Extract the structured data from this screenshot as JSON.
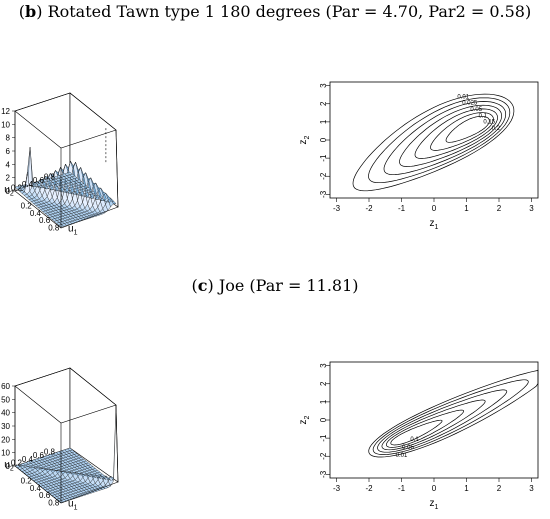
{
  "panels": [
    {
      "letter": "b",
      "title": "Rotated Tawn type 1 180 degrees (Par = 4.70, Par2 = 0.58)"
    },
    {
      "letter": "c",
      "title": "Joe (Par = 11.81)"
    }
  ],
  "axis_text": {
    "u1": "u",
    "u2": "u",
    "z1": "z",
    "z2": "z",
    "sub1": "1",
    "sub2": "2"
  },
  "chart_data": [
    {
      "type": "surface",
      "title": "",
      "zticks": [
        "0",
        "2",
        "4",
        "6",
        "8",
        "10",
        "12"
      ],
      "zlim": [
        0,
        12
      ],
      "u1_ticks": [
        "0.2",
        "0.4",
        "0.6",
        "0.8"
      ],
      "u2_ticks": [
        "0.2",
        "0.4",
        "0.6",
        "0.8"
      ],
      "surface_color": "#7fb8e8"
    },
    {
      "type": "contour",
      "title": "",
      "xticks": [
        "-3",
        "-2",
        "-1",
        "0",
        "1",
        "2",
        "3"
      ],
      "yticks": [
        "-3",
        "-2",
        "-1",
        "0",
        "1",
        "2",
        "3"
      ],
      "xlim": [
        -3.2,
        3.2
      ],
      "ylim": [
        -3.2,
        3.2
      ],
      "contour_labels": [
        "0.01",
        "0.025",
        "0.05",
        "0.1",
        "0.15",
        "0.2"
      ]
    },
    {
      "type": "surface",
      "title": "",
      "zticks": [
        "0",
        "10",
        "20",
        "30",
        "40",
        "50",
        "60"
      ],
      "zlim": [
        0,
        60
      ],
      "u1_ticks": [
        "0.2",
        "0.4",
        "0.6",
        "0.8"
      ],
      "u2_ticks": [
        "0.2",
        "0.4",
        "0.6",
        "0.8"
      ],
      "surface_color": "#7fb8e8"
    },
    {
      "type": "contour",
      "title": "",
      "xticks": [
        "-3",
        "-2",
        "-1",
        "0",
        "1",
        "2",
        "3"
      ],
      "yticks": [
        "-3",
        "-2",
        "-1",
        "0",
        "1",
        "2",
        "3"
      ],
      "xlim": [
        -3.2,
        3.2
      ],
      "ylim": [
        -3.2,
        3.2
      ],
      "contour_labels": [
        "0.01",
        "0.05",
        "0.1"
      ]
    }
  ]
}
